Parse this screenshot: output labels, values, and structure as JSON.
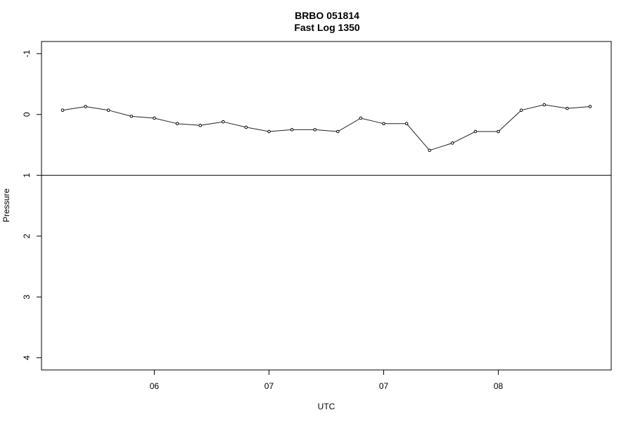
{
  "chart_data": {
    "type": "line",
    "title": "BRBO 051814",
    "subtitle": "Fast Log 1350",
    "xlabel": "UTC",
    "ylabel": "Pressure",
    "x_tick_labels": [
      "06",
      "07",
      "07",
      "08"
    ],
    "y_ticks": [
      -1,
      0,
      1,
      2,
      3,
      4
    ],
    "y_tick_labels": [
      "-1",
      "0",
      "1",
      "2",
      "3",
      "4"
    ],
    "ylim": [
      4.2,
      -1.2
    ],
    "y_reversed": true,
    "reference_line_y": 1,
    "grid": false,
    "series": [
      {
        "values": [
          -0.07,
          -0.13,
          -0.07,
          0.03,
          0.06,
          0.15,
          0.18,
          0.12,
          0.21,
          0.28,
          0.25,
          0.25,
          0.28,
          0.06,
          0.15,
          0.15,
          0.59,
          0.47,
          0.28,
          0.28,
          -0.07,
          -0.16,
          -0.1,
          -0.13
        ]
      }
    ]
  }
}
